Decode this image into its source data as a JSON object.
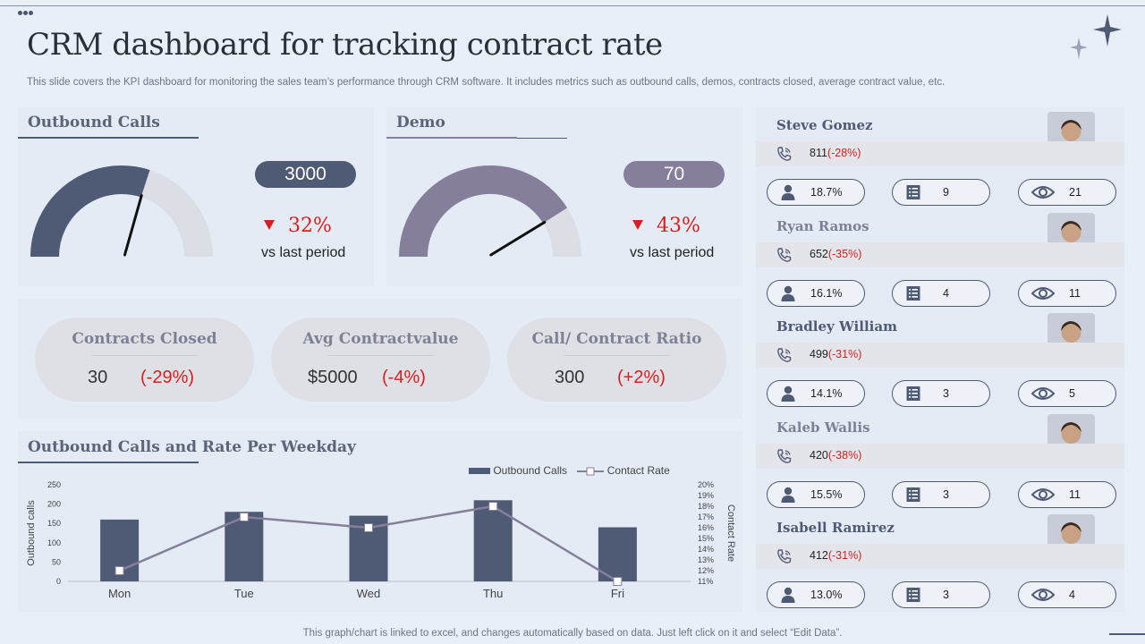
{
  "header": {
    "title": "CRM dashboard for tracking contract rate",
    "subtitle": "This slide covers the KPI dashboard for monitoring the sales team’s performance through CRM software. It includes metrics such as outbound calls, demos, contracts closed, average contract value, etc."
  },
  "outbound": {
    "title": "Outbound Calls",
    "value": "3000",
    "change": "32%",
    "vs": "vs last period",
    "gauge_fraction": 0.6
  },
  "demo": {
    "title": "Demo",
    "value": "70",
    "change": "43%",
    "vs": "vs last period",
    "gauge_fraction": 0.82
  },
  "stats": [
    {
      "label": "Contracts Closed",
      "value": "30",
      "change": "(-29%)"
    },
    {
      "label": "Avg Contractvalue",
      "value": "$5000",
      "change": "(-4%)"
    },
    {
      "label": "Call/ Contract Ratio",
      "value": "300",
      "change": "(+2%)"
    }
  ],
  "chart_section": {
    "title": "Outbound Calls and Rate Per Weekday"
  },
  "chart_data": {
    "type": "bar",
    "title": "Outbound Calls and Rate Per Weekday",
    "categories": [
      "Mon",
      "Tue",
      "Wed",
      "Thu",
      "Fri"
    ],
    "series": [
      {
        "name": "Outbound Calls",
        "type": "bar",
        "values": [
          160,
          180,
          170,
          210,
          140
        ]
      },
      {
        "name": "Contact Rate",
        "type": "line",
        "axis": "right",
        "values": [
          12,
          17,
          16,
          18,
          11
        ]
      }
    ],
    "ylabel": "Outbound calls",
    "y_ticks": [
      "250",
      "200",
      "150",
      "100",
      "50",
      "0"
    ],
    "ylim": [
      0,
      250
    ],
    "y2label": "Contact Rate",
    "y2_ticks": [
      "20%",
      "19%",
      "18%",
      "17%",
      "16%",
      "15%",
      "14%",
      "13%",
      "12%",
      "11%"
    ],
    "y2lim": [
      11,
      20
    ],
    "legend": [
      "Outbound Calls",
      "Contact Rate"
    ]
  },
  "people": [
    {
      "name": "Steve Gomez",
      "calls": "811",
      "change": "(-28%)",
      "pct": "18.7%",
      "docs": "9",
      "views": "21"
    },
    {
      "name": "Ryan Ramos",
      "calls": "652",
      "change": "(-35%)",
      "pct": "16.1%",
      "docs": "4",
      "views": "11"
    },
    {
      "name": "Bradley William",
      "calls": "499",
      "change": "(-31%)",
      "pct": "14.1%",
      "docs": "3",
      "views": "5"
    },
    {
      "name": "Kaleb Wallis",
      "calls": "420",
      "change": "(-38%)",
      "pct": "15.5%",
      "docs": "3",
      "views": "11"
    },
    {
      "name": "Isabell Ramirez",
      "calls": "412",
      "change": "(-31%)",
      "pct": "13.0%",
      "docs": "3",
      "views": "4"
    }
  ],
  "colors": {
    "dark": "#4f5a74",
    "purple": "#857f9c",
    "red": "#d42020",
    "track": "#dcdee5"
  },
  "footer": "This graph/chart is linked to excel,  and changes automatically based on data. Just left click on it and select “Edit Data”."
}
